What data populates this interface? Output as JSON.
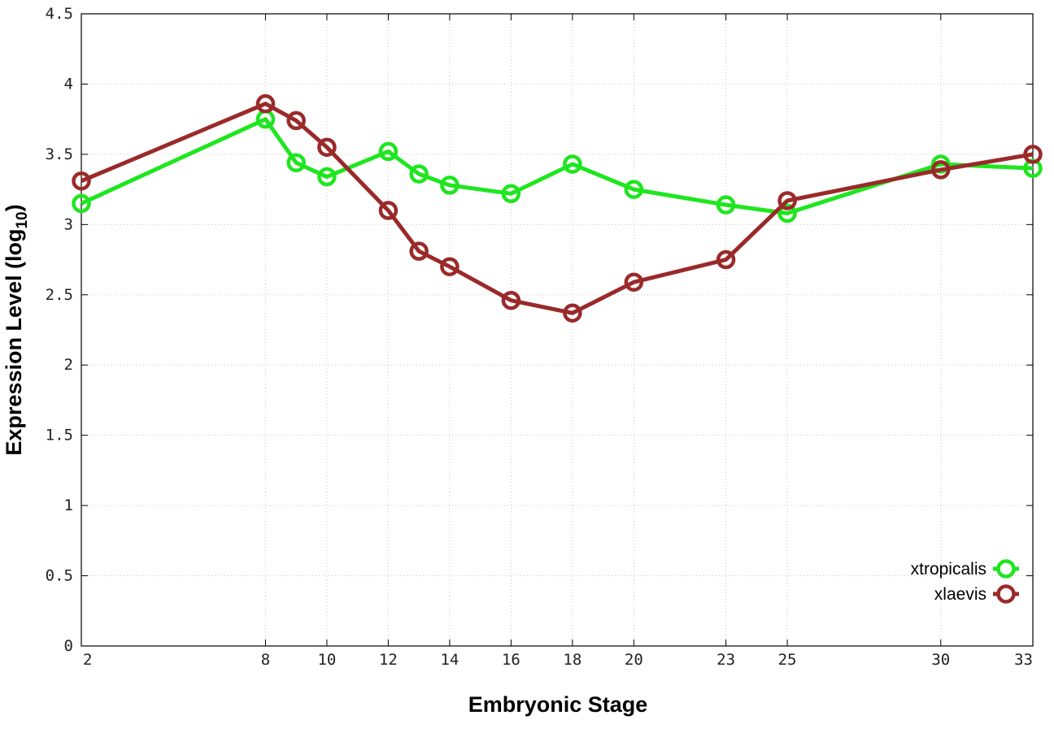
{
  "chart_data": {
    "type": "line",
    "title": "",
    "xlabel": "Embryonic Stage",
    "ylabel_main": "Expression Level (log",
    "ylabel_sub": "10",
    "ylabel_close": ")",
    "x": [
      2,
      8,
      9,
      10,
      12,
      13,
      14,
      16,
      18,
      20,
      23,
      25,
      30,
      33
    ],
    "xticks": [
      "2",
      "8",
      "10",
      "12",
      "14",
      "16",
      "18",
      "20",
      "23",
      "25",
      "30",
      "33"
    ],
    "xtick_values": [
      2,
      8,
      10,
      12,
      14,
      16,
      18,
      20,
      23,
      25,
      30,
      33
    ],
    "yticks": [
      "0",
      "0.5",
      "1",
      "1.5",
      "2",
      "2.5",
      "3",
      "3.5",
      "4",
      "4.5"
    ],
    "ytick_values": [
      0,
      0.5,
      1,
      1.5,
      2,
      2.5,
      3,
      3.5,
      4,
      4.5
    ],
    "xlim": [
      2,
      33
    ],
    "ylim": [
      0,
      4.5
    ],
    "grid": true,
    "legend_position": "bottom-right",
    "series": [
      {
        "name": "xtropicalis",
        "color": "#1ee61e",
        "values": [
          3.15,
          3.75,
          3.44,
          3.34,
          3.52,
          3.36,
          3.28,
          3.22,
          3.43,
          3.25,
          3.14,
          3.08,
          3.43,
          3.4
        ]
      },
      {
        "name": "xlaevis",
        "color": "#9a2a2a",
        "values": [
          3.31,
          3.86,
          3.74,
          3.55,
          3.1,
          2.81,
          2.7,
          2.46,
          2.37,
          2.59,
          2.75,
          3.17,
          3.39,
          3.5
        ]
      }
    ]
  }
}
